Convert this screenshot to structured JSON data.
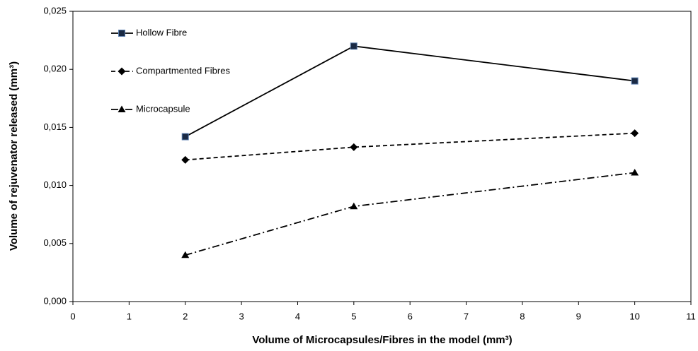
{
  "chart_data": {
    "type": "line",
    "xlabel": "Volume of Microcapsules/Fibres in the model (mm³)",
    "ylabel": "Volume of rejuvenator released (mm³)",
    "xlim": [
      0,
      11
    ],
    "xticks": [
      0,
      1,
      2,
      3,
      4,
      5,
      6,
      7,
      8,
      9,
      10,
      11
    ],
    "ylim": [
      0,
      0.025
    ],
    "yticks": [
      {
        "value": 0,
        "label": "0,000"
      },
      {
        "value": 0.005,
        "label": "0,005"
      },
      {
        "value": 0.01,
        "label": "0,010"
      },
      {
        "value": 0.015,
        "label": "0,015"
      },
      {
        "value": 0.02,
        "label": "0,020"
      },
      {
        "value": 0.025,
        "label": "0,025"
      }
    ],
    "grid": false,
    "legend": "upper left",
    "series": [
      {
        "name": "Hollow Fibre",
        "color": "#000000",
        "marker": "square",
        "dash": "solid",
        "x": [
          2,
          5,
          10
        ],
        "values": [
          0.0142,
          0.022,
          0.019
        ]
      },
      {
        "name": "Compartmented Fibres",
        "color": "#000000",
        "marker": "diamond",
        "dash": "dashed",
        "x": [
          2,
          5,
          10
        ],
        "values": [
          0.0122,
          0.0133,
          0.0145
        ]
      },
      {
        "name": "Microcapsule",
        "color": "#000000",
        "marker": "triangle",
        "dash": "dashdot",
        "x": [
          2,
          5,
          10
        ],
        "values": [
          0.004,
          0.0082,
          0.0111
        ]
      }
    ]
  }
}
